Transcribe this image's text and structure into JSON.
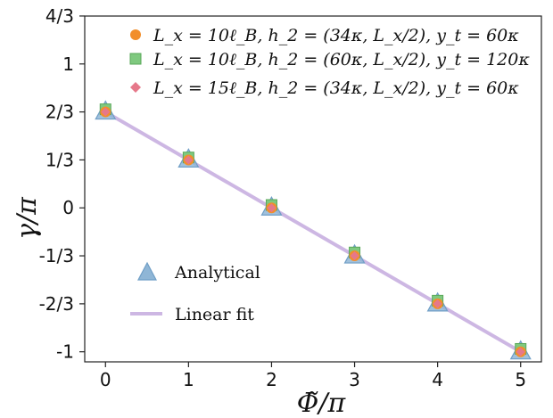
{
  "chart_data": {
    "type": "scatter",
    "xlabel": "Φ̃/π",
    "ylabel": "γ/π",
    "xlim": [
      -0.25,
      5.25
    ],
    "ylim": [
      -1.07,
      1.333
    ],
    "x_ticks": [
      0,
      1,
      2,
      3,
      4,
      5
    ],
    "x_tick_labels": [
      "0",
      "1",
      "2",
      "3",
      "4",
      "5"
    ],
    "y_ticks": [
      1.3333,
      1,
      0.6667,
      0.3333,
      0,
      -0.3333,
      -0.6667,
      -1
    ],
    "y_tick_labels": [
      "4/3",
      "1",
      "2/3",
      "1/3",
      "0",
      "-1/3",
      "-2/3",
      "-1"
    ],
    "grid": false,
    "legend_top": "top-right",
    "legend_bottom": "lower-left",
    "series": [
      {
        "name": "L_x = 10ℓ_B, h_2 = (34κ, L_x/2), y_t = 60κ",
        "marker": "circle",
        "color": "#f28e2b",
        "x": [
          0,
          1,
          2,
          3,
          4,
          5
        ],
        "y": [
          0.667,
          0.333,
          0.0,
          -0.333,
          -0.667,
          -1.0
        ]
      },
      {
        "name": "L_x = 10ℓ_B, h_2 = (60κ, L_x/2), y_t = 120κ",
        "marker": "square",
        "color": "#7fc97f",
        "x": [
          0,
          1,
          2,
          3,
          4,
          5
        ],
        "y": [
          0.685,
          0.35,
          0.02,
          -0.31,
          -0.645,
          -0.98
        ]
      },
      {
        "name": "L_x = 15ℓ_B, h_2 = (34κ, L_x/2), y_t = 60κ",
        "marker": "diamond",
        "color": "#e6788a",
        "x": [
          0,
          1,
          2,
          3,
          4,
          5
        ],
        "y": [
          0.667,
          0.333,
          0.0,
          -0.333,
          -0.667,
          -1.0
        ]
      },
      {
        "name": "Analytical",
        "marker": "triangle",
        "color": "#8fb6d6",
        "x": [
          0,
          1,
          2,
          3,
          4,
          5
        ],
        "y": [
          0.6667,
          0.3333,
          0.0,
          -0.3333,
          -0.6667,
          -1.0
        ]
      },
      {
        "name": "Linear fit",
        "marker": "line",
        "color": "#cdb7e3",
        "x": [
          0,
          5
        ],
        "y": [
          0.6667,
          -1.0
        ]
      }
    ]
  }
}
